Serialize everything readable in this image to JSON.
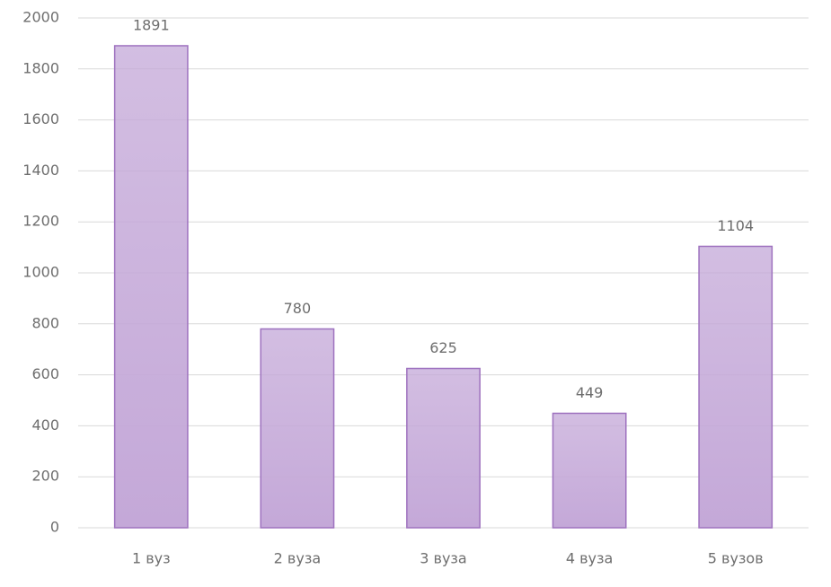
{
  "chart_data": {
    "type": "bar",
    "categories": [
      "1 вуз",
      "2 вуза",
      "3 вуза",
      "4 вуза",
      "5 вузов"
    ],
    "values": [
      1891,
      780,
      625,
      449,
      1104
    ],
    "color": "#c4a8d8",
    "ylim": [
      0,
      2000
    ],
    "yticks": [
      0,
      200,
      400,
      600,
      800,
      1000,
      1200,
      1400,
      1600,
      1800,
      2000
    ],
    "grid": true
  }
}
